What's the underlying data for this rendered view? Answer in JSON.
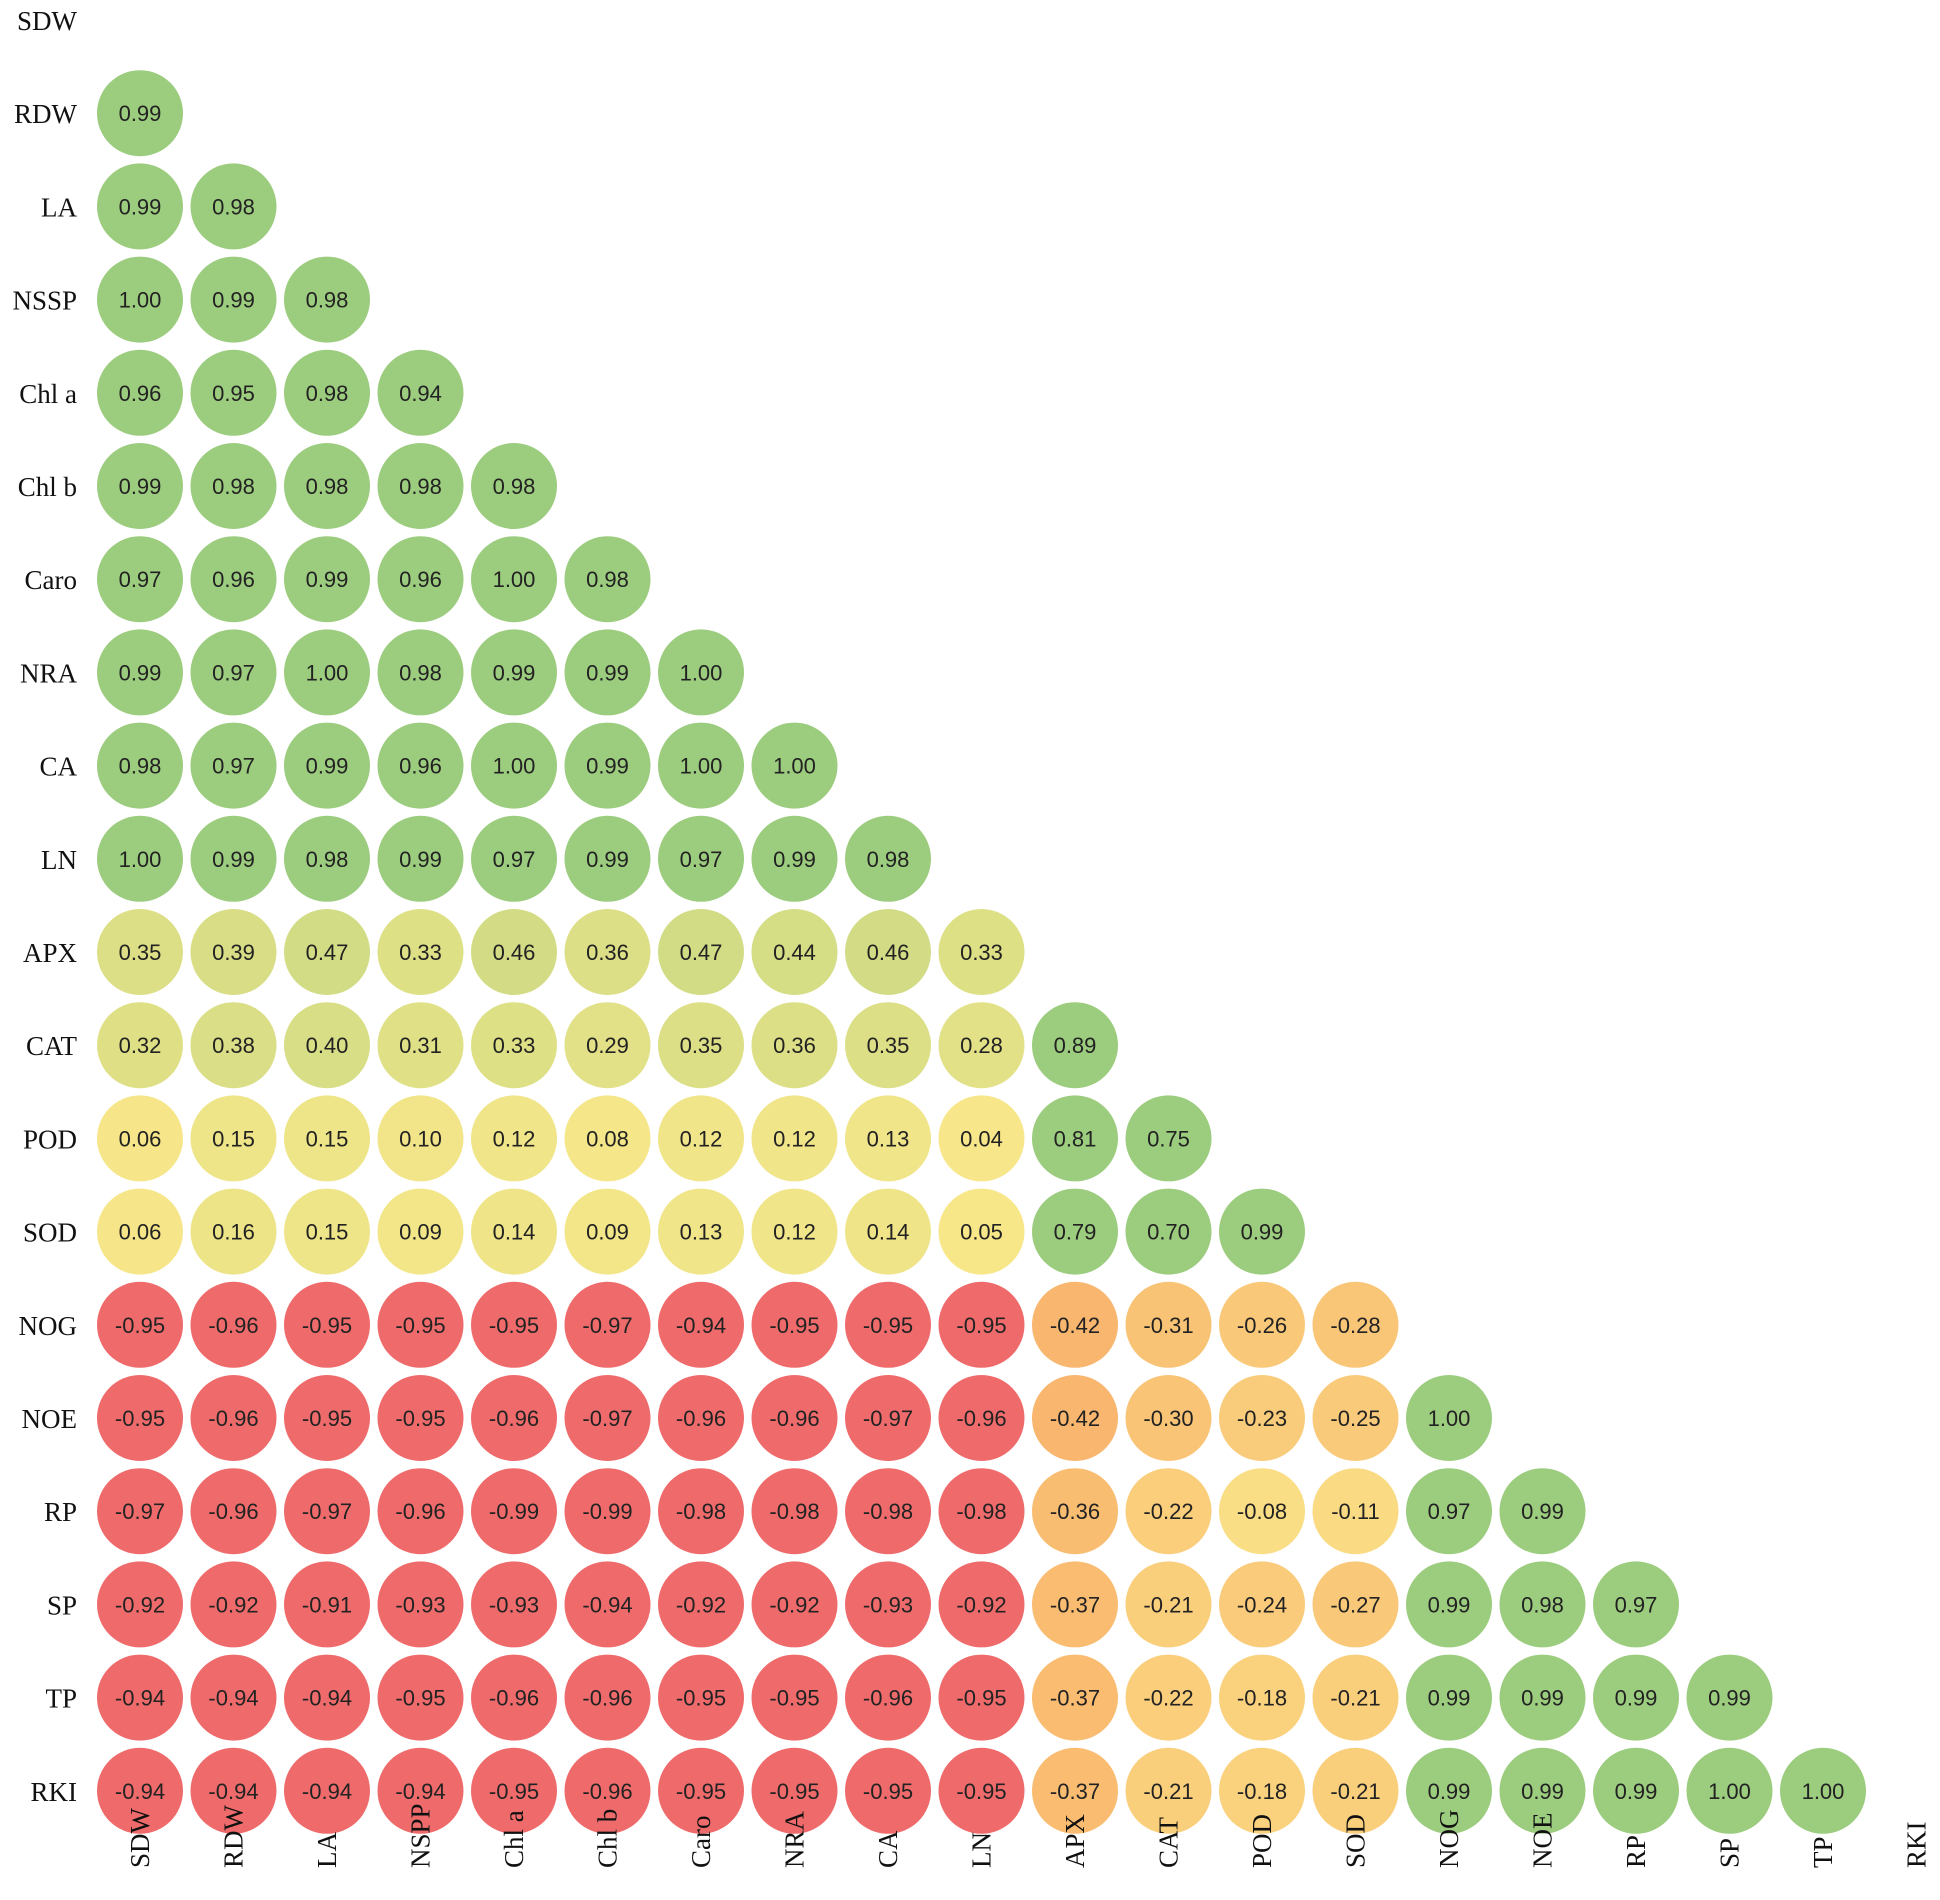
{
  "chart_data": {
    "type": "heatmap",
    "row_labels": [
      "SDW",
      "RDW",
      "LA",
      "NSSP",
      "Chl a",
      "Chl b",
      "Caro",
      "NRA",
      "CA",
      "LN",
      "APX",
      "CAT",
      "POD",
      "SOD",
      "NOG",
      "NOE",
      "RP",
      "SP",
      "TP",
      "RKI"
    ],
    "col_labels": [
      "SDW",
      "RDW",
      "LA",
      "NSPP",
      "Chl a",
      "Chl b",
      "Caro",
      "NRA",
      "CA",
      "LN",
      "APX",
      "CAT",
      "POD",
      "SOD",
      "NOG",
      "NOE",
      "RP",
      "SP",
      "TP",
      "RKI"
    ],
    "values": [
      [],
      [
        "0.99"
      ],
      [
        "0.99",
        "0.98"
      ],
      [
        "1.00",
        "0.99",
        "0.98"
      ],
      [
        "0.96",
        "0.95",
        "0.98",
        "0.94"
      ],
      [
        "0.99",
        "0.98",
        "0.98",
        "0.98",
        "0.98"
      ],
      [
        "0.97",
        "0.96",
        "0.99",
        "0.96",
        "1.00",
        "0.98"
      ],
      [
        "0.99",
        "0.97",
        "1.00",
        "0.98",
        "0.99",
        "0.99",
        "1.00"
      ],
      [
        "0.98",
        "0.97",
        "0.99",
        "0.96",
        "1.00",
        "0.99",
        "1.00",
        "1.00"
      ],
      [
        "1.00",
        "0.99",
        "0.98",
        "0.99",
        "0.97",
        "0.99",
        "0.97",
        "0.99",
        "0.98"
      ],
      [
        "0.35",
        "0.39",
        "0.47",
        "0.33",
        "0.46",
        "0.36",
        "0.47",
        "0.44",
        "0.46",
        "0.33"
      ],
      [
        "0.32",
        "0.38",
        "0.40",
        "0.31",
        "0.33",
        "0.29",
        "0.35",
        "0.36",
        "0.35",
        "0.28",
        "0.89"
      ],
      [
        "0.06",
        "0.15",
        "0.15",
        "0.10",
        "0.12",
        "0.08",
        "0.12",
        "0.12",
        "0.13",
        "0.04",
        "0.81",
        "0.75"
      ],
      [
        "0.06",
        "0.16",
        "0.15",
        "0.09",
        "0.14",
        "0.09",
        "0.13",
        "0.12",
        "0.14",
        "0.05",
        "0.79",
        "0.70",
        "0.99"
      ],
      [
        "-0.95",
        "-0.96",
        "-0.95",
        "-0.95",
        "-0.95",
        "-0.97",
        "-0.94",
        "-0.95",
        "-0.95",
        "-0.95",
        "-0.42",
        "-0.31",
        "-0.26",
        "-0.28"
      ],
      [
        "-0.95",
        "-0.96",
        "-0.95",
        "-0.95",
        "-0.96",
        "-0.97",
        "-0.96",
        "-0.96",
        "-0.97",
        "-0.96",
        "-0.42",
        "-0.30",
        "-0.23",
        "-0.25",
        "1.00"
      ],
      [
        "-0.97",
        "-0.96",
        "-0.97",
        "-0.96",
        "-0.99",
        "-0.99",
        "-0.98",
        "-0.98",
        "-0.98",
        "-0.98",
        "-0.36",
        "-0.22",
        "-0.08",
        "-0.11",
        "0.97",
        "0.99"
      ],
      [
        "-0.92",
        "-0.92",
        "-0.91",
        "-0.93",
        "-0.93",
        "-0.94",
        "-0.92",
        "-0.92",
        "-0.93",
        "-0.92",
        "-0.37",
        "-0.21",
        "-0.24",
        "-0.27",
        "0.99",
        "0.98",
        "0.97"
      ],
      [
        "-0.94",
        "-0.94",
        "-0.94",
        "-0.95",
        "-0.96",
        "-0.96",
        "-0.95",
        "-0.95",
        "-0.96",
        "-0.95",
        "-0.37",
        "-0.22",
        "-0.18",
        "-0.21",
        "0.99",
        "0.99",
        "0.99",
        "0.99"
      ],
      [
        "-0.94",
        "-0.94",
        "-0.94",
        "-0.94",
        "-0.95",
        "-0.96",
        "-0.95",
        "-0.95",
        "-0.95",
        "-0.95",
        "-0.37",
        "-0.21",
        "-0.18",
        "-0.21",
        "0.99",
        "0.99",
        "0.99",
        "1.00",
        "1.00"
      ]
    ],
    "color_scale": {
      "low": "#ef6b6b",
      "mid": "#fbe88a",
      "high": "#9ccc7e"
    }
  }
}
